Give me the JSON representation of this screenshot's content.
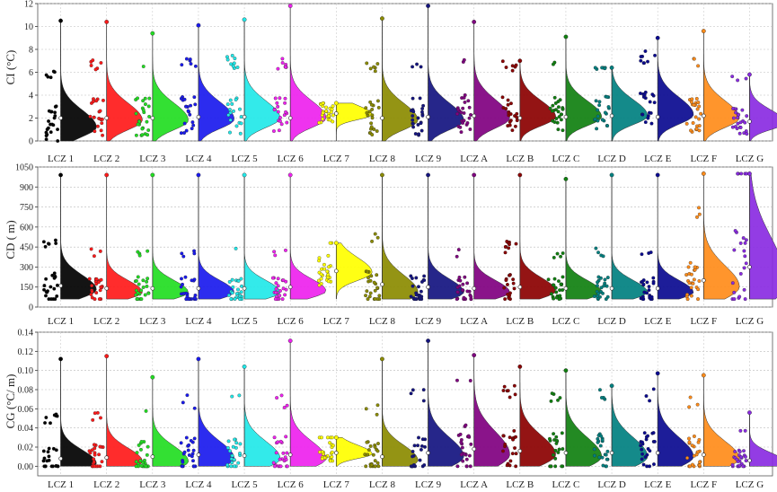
{
  "chart_data": [
    {
      "type": "violin",
      "ylabel": "CI (°C)",
      "ylim": [
        0,
        12
      ],
      "yticks": [
        0,
        2,
        4,
        6,
        8,
        10,
        12
      ],
      "grid": true,
      "categories": [
        "LCZ 1",
        "LCZ 2",
        "LCZ 3",
        "LCZ 4",
        "LCZ 5",
        "LCZ 6",
        "LCZ 7",
        "LCZ 8",
        "LCZ 9",
        "LCZ A",
        "LCZ B",
        "LCZ C",
        "LCZ D",
        "LCZ E",
        "LCZ F",
        "LCZ G"
      ],
      "colors": [
        "#000000",
        "#ff1a1a",
        "#22dd22",
        "#1a1aee",
        "#22e8e8",
        "#ee22ee",
        "#ffff00",
        "#8b8b00",
        "#141480",
        "#800080",
        "#8b0000",
        "#108010",
        "#008080",
        "#0a0a90",
        "#ff8c1a",
        "#8a2be2"
      ],
      "min": [
        0.0,
        0.0,
        0.0,
        0.0,
        0.0,
        0.0,
        0.0,
        0.0,
        0.0,
        0.0,
        0.0,
        0.0,
        0.0,
        0.0,
        0.0,
        0.0
      ],
      "max": [
        10.5,
        10.4,
        9.4,
        10.1,
        10.6,
        11.8,
        3.3,
        10.7,
        11.8,
        10.4,
        7.0,
        9.1,
        6.4,
        9.0,
        9.6,
        5.8
      ],
      "mode": [
        1.2,
        1.8,
        1.8,
        1.9,
        2.0,
        2.0,
        2.3,
        1.8,
        1.8,
        2.0,
        2.1,
        2.1,
        2.2,
        2.3,
        2.0,
        1.6
      ],
      "median": [
        2.0,
        2.0,
        2.0,
        2.1,
        2.1,
        2.0,
        2.4,
        2.0,
        2.1,
        2.2,
        2.0,
        2.1,
        2.2,
        2.1,
        2.2,
        1.7
      ],
      "spread": [
        1.5,
        1.5,
        1.5,
        1.5,
        1.5,
        1.5,
        0.8,
        1.5,
        1.5,
        1.6,
        1.4,
        1.4,
        1.4,
        1.5,
        1.5,
        1.1
      ]
    },
    {
      "type": "violin",
      "ylabel": "CD ( m)",
      "ylim": [
        0,
        1050
      ],
      "yticks": [
        0,
        150,
        300,
        450,
        600,
        750,
        900,
        1050
      ],
      "grid": true,
      "categories": [
        "LCZ 1",
        "LCZ 2",
        "LCZ 3",
        "LCZ 4",
        "LCZ 5",
        "LCZ 6",
        "LCZ 7",
        "LCZ 8",
        "LCZ 9",
        "LCZ A",
        "LCZ B",
        "LCZ C",
        "LCZ D",
        "LCZ E",
        "LCZ F",
        "LCZ G"
      ],
      "colors": [
        "#000000",
        "#ff1a1a",
        "#22dd22",
        "#1a1aee",
        "#22e8e8",
        "#ee22ee",
        "#ffff00",
        "#8b8b00",
        "#141480",
        "#800080",
        "#8b0000",
        "#108010",
        "#008080",
        "#0a0a90",
        "#ff8c1a",
        "#8a2be2"
      ],
      "min": [
        60,
        60,
        60,
        60,
        60,
        60,
        60,
        60,
        60,
        60,
        60,
        60,
        60,
        60,
        60,
        60
      ],
      "max": [
        990,
        990,
        990,
        990,
        990,
        990,
        480,
        990,
        990,
        990,
        990,
        960,
        990,
        990,
        1000,
        1000
      ],
      "mode": [
        130,
        110,
        110,
        110,
        110,
        120,
        260,
        110,
        110,
        110,
        120,
        110,
        110,
        110,
        150,
        200
      ],
      "median": [
        160,
        140,
        140,
        140,
        140,
        150,
        270,
        170,
        150,
        140,
        150,
        140,
        140,
        140,
        200,
        300
      ],
      "spread": [
        110,
        90,
        90,
        90,
        90,
        90,
        110,
        130,
        100,
        90,
        100,
        90,
        90,
        90,
        160,
        320
      ]
    },
    {
      "type": "violin",
      "ylabel": "CG (°C/ m)",
      "ylim": [
        -0.01,
        0.14
      ],
      "yticks": [
        0.0,
        0.02,
        0.04,
        0.06,
        0.08,
        0.1,
        0.12,
        0.14
      ],
      "grid": true,
      "categories": [
        "LCZ 1",
        "LCZ 2",
        "LCZ 3",
        "LCZ 4",
        "LCZ 5",
        "LCZ 6",
        "LCZ 7",
        "LCZ 8",
        "LCZ 9",
        "LCZ A",
        "LCZ B",
        "LCZ C",
        "LCZ D",
        "LCZ E",
        "LCZ F",
        "LCZ G"
      ],
      "colors": [
        "#000000",
        "#ff1a1a",
        "#22dd22",
        "#1a1aee",
        "#22e8e8",
        "#ee22ee",
        "#ffff00",
        "#8b8b00",
        "#141480",
        "#800080",
        "#8b0000",
        "#108010",
        "#008080",
        "#0a0a90",
        "#ff8c1a",
        "#8a2be2"
      ],
      "min": [
        0,
        0,
        0,
        0,
        0,
        0,
        0,
        0,
        0,
        0,
        0,
        0,
        0,
        0,
        0,
        0
      ],
      "max": [
        0.112,
        0.115,
        0.093,
        0.112,
        0.104,
        0.131,
        0.03,
        0.112,
        0.131,
        0.116,
        0.104,
        0.1,
        0.084,
        0.097,
        0.095,
        0.056
      ],
      "mode": [
        0.003,
        0.005,
        0.005,
        0.008,
        0.008,
        0.008,
        0.013,
        0.006,
        0.01,
        0.012,
        0.012,
        0.01,
        0.01,
        0.01,
        0.008,
        0.004
      ],
      "median": [
        0.008,
        0.009,
        0.01,
        0.012,
        0.011,
        0.012,
        0.014,
        0.01,
        0.014,
        0.018,
        0.016,
        0.014,
        0.014,
        0.014,
        0.012,
        0.006
      ],
      "spread": [
        0.014,
        0.014,
        0.016,
        0.018,
        0.018,
        0.018,
        0.009,
        0.016,
        0.02,
        0.024,
        0.02,
        0.02,
        0.02,
        0.02,
        0.018,
        0.01
      ]
    }
  ]
}
